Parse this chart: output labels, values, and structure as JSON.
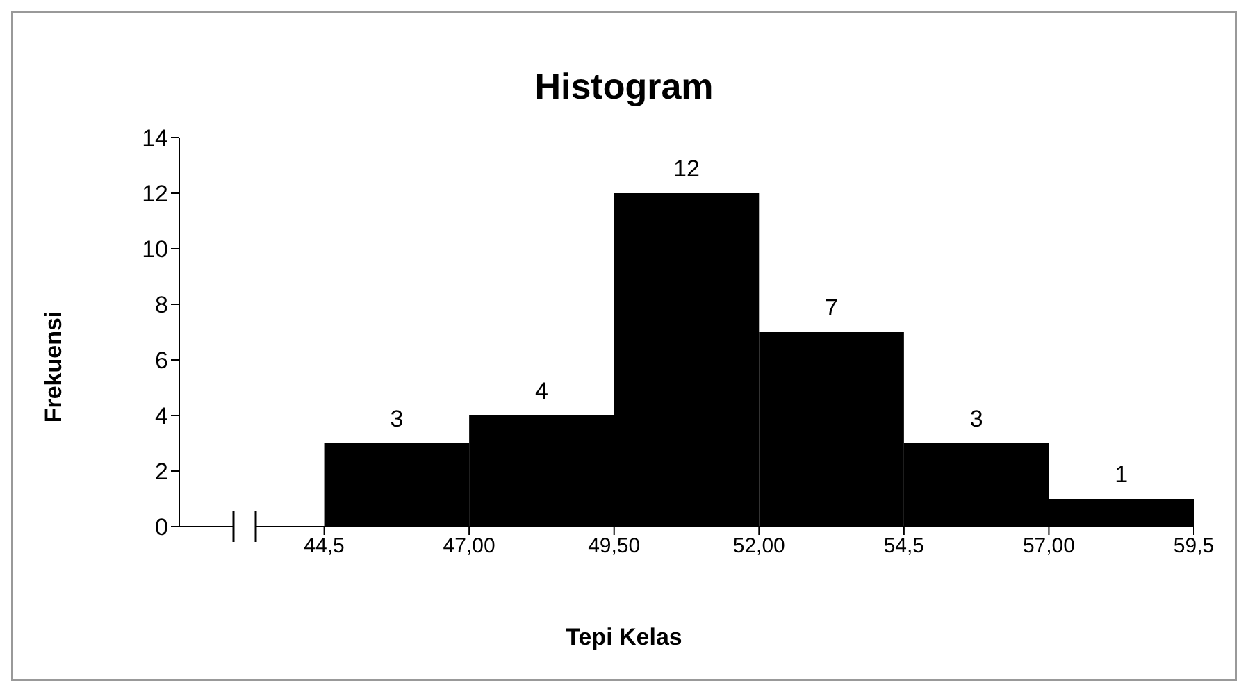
{
  "chart_data": {
    "type": "histogram",
    "title": "Histogram",
    "xlabel": "Tepi Kelas",
    "ylabel": "Frekuensi",
    "bins": [
      44.5,
      47,
      49.5,
      52,
      54.5,
      57,
      59.5
    ],
    "values": [
      3,
      4,
      12,
      7,
      3,
      1
    ],
    "color": "#000000",
    "xlim": [
      42,
      59.5
    ],
    "xticks": [
      {
        "value": 44.5,
        "label": "44,5"
      },
      {
        "value": 47,
        "label": "47,00"
      },
      {
        "value": 49.5,
        "label": "49,50"
      },
      {
        "value": 52,
        "label": "52,00"
      },
      {
        "value": 54.5,
        "label": "54,5"
      },
      {
        "value": 57,
        "label": "57,00"
      },
      {
        "value": 59.5,
        "label": "59,5"
      }
    ],
    "ylim": [
      0,
      14
    ],
    "yticks": [
      0,
      2,
      4,
      6,
      8,
      10,
      12,
      14
    ],
    "grid": false,
    "legend": false,
    "data_labels": true
  }
}
